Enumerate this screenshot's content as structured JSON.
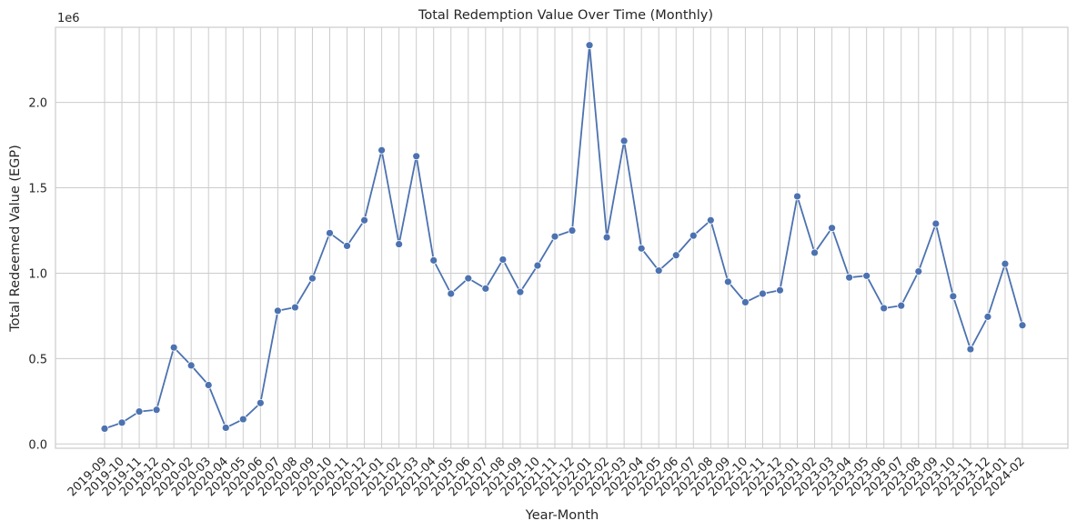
{
  "chart_data": {
    "type": "line",
    "title": "Total Redemption Value Over Time (Monthly)",
    "xlabel": "Year-Month",
    "ylabel": "Total Redeemed Value (EGP)",
    "y_offset_label": "1e6",
    "ylim": [
      -25000,
      2440000
    ],
    "y_ticks": [
      0,
      500000,
      1000000,
      1500000,
      2000000
    ],
    "y_tick_labels": [
      "0.0",
      "0.5",
      "1.0",
      "1.5",
      "2.0"
    ],
    "grid": true,
    "line_color": "#4c72b0",
    "categories": [
      "2019-09",
      "2019-10",
      "2019-11",
      "2019-12",
      "2020-01",
      "2020-02",
      "2020-03",
      "2020-04",
      "2020-05",
      "2020-06",
      "2020-07",
      "2020-08",
      "2020-09",
      "2020-10",
      "2020-11",
      "2020-12",
      "2021-01",
      "2021-02",
      "2021-03",
      "2021-04",
      "2021-05",
      "2021-06",
      "2021-07",
      "2021-08",
      "2021-09",
      "2021-10",
      "2021-11",
      "2021-12",
      "2022-01",
      "2022-02",
      "2022-03",
      "2022-04",
      "2022-05",
      "2022-06",
      "2022-07",
      "2022-08",
      "2022-09",
      "2022-10",
      "2022-11",
      "2022-12",
      "2023-01",
      "2023-02",
      "2023-03",
      "2023-04",
      "2023-05",
      "2023-06",
      "2023-07",
      "2023-08",
      "2023-09",
      "2023-10",
      "2023-11",
      "2023-12",
      "2024-01",
      "2024-02"
    ],
    "series": [
      {
        "values": [
          90000,
          125000,
          190000,
          200000,
          565000,
          460000,
          345000,
          95000,
          145000,
          240000,
          780000,
          800000,
          970000,
          1235000,
          1160000,
          1310000,
          1720000,
          1170000,
          1685000,
          1075000,
          880000,
          970000,
          910000,
          1080000,
          890000,
          1045000,
          1215000,
          1250000,
          2335000,
          1210000,
          1775000,
          1145000,
          1015000,
          1105000,
          1220000,
          1310000,
          950000,
          830000,
          880000,
          900000,
          1450000,
          1120000,
          1265000,
          975000,
          985000,
          795000,
          810000,
          1010000,
          1290000,
          865000,
          555000,
          745000,
          1055000,
          695000
        ]
      }
    ]
  }
}
